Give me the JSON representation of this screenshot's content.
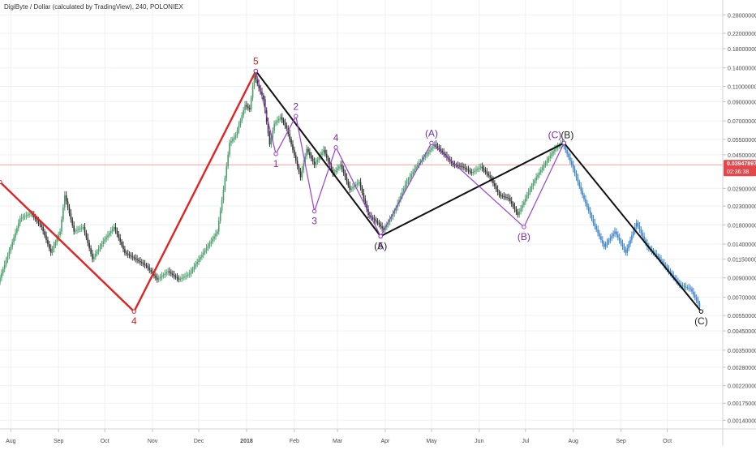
{
  "title": "DigiByte / Dollar (calculated by TradingView), 240, POLONIEX",
  "colors": {
    "grid": "#eef0f3",
    "axis_text": "#4a4a4a",
    "candle_up": "#4a9e6a",
    "candle_down": "#333333",
    "candle_recent": "#3d84c6",
    "red_wave": "#e32222",
    "black_wave": "#111111",
    "purple_wave": "#9b3fd0",
    "wave_label_red": "#d22020",
    "wave_label_purple": "#7a2fa8",
    "wave_label_black": "#222222",
    "current_price_bg": "#e3474a",
    "current_price_line": "#f0a3a3"
  },
  "chart_data": {
    "type": "line",
    "y_scale": "log",
    "ylim": [
      0.00125,
      0.34
    ],
    "x_ticks": [
      "Aug",
      "Sep",
      "Oct",
      "Nov",
      "Dec",
      "2018",
      "Feb",
      "Mar",
      "Apr",
      "May",
      "Jun",
      "Jul",
      "Aug",
      "Sep",
      "Oct"
    ],
    "y_ticks": [
      "0.28000000",
      "0.22000000",
      "0.18000000",
      "0.14000000",
      "0.11000000",
      "0.09000000",
      "0.07000000",
      "0.05500000",
      "0.04500000",
      "0.02900000",
      "0.02300000",
      "0.01800000",
      "0.01400000",
      "0.01150000",
      "0.00900000",
      "0.00700000",
      "0.00550000",
      "0.00450000",
      "0.00350000",
      "0.00280000",
      "0.00220000",
      "0.00175000",
      "0.00140000"
    ],
    "current_price": {
      "value": "0.03947897",
      "countdown": "02:36:38",
      "level": 0.03947897
    },
    "series": [
      {
        "kind": "price",
        "points": [
          {
            "x": "2017-07-25",
            "y": 0.0085
          },
          {
            "x": "2017-08-02",
            "y": 0.0135
          },
          {
            "x": "2017-08-08",
            "y": 0.0195
          },
          {
            "x": "2017-08-15",
            "y": 0.021
          },
          {
            "x": "2017-08-22",
            "y": 0.0175
          },
          {
            "x": "2017-08-28",
            "y": 0.0125
          },
          {
            "x": "2017-09-03",
            "y": 0.0165
          },
          {
            "x": "2017-09-06",
            "y": 0.0265
          },
          {
            "x": "2017-09-12",
            "y": 0.0165
          },
          {
            "x": "2017-09-18",
            "y": 0.0175
          },
          {
            "x": "2017-09-24",
            "y": 0.0115
          },
          {
            "x": "2017-10-01",
            "y": 0.0145
          },
          {
            "x": "2017-10-08",
            "y": 0.0175
          },
          {
            "x": "2017-10-15",
            "y": 0.0125
          },
          {
            "x": "2017-10-22",
            "y": 0.0115
          },
          {
            "x": "2017-10-29",
            "y": 0.0105
          },
          {
            "x": "2017-11-05",
            "y": 0.0088
          },
          {
            "x": "2017-11-12",
            "y": 0.0098
          },
          {
            "x": "2017-11-19",
            "y": 0.0088
          },
          {
            "x": "2017-11-26",
            "y": 0.0095
          },
          {
            "x": "2017-12-03",
            "y": 0.0118
          },
          {
            "x": "2017-12-10",
            "y": 0.0145
          },
          {
            "x": "2017-12-14",
            "y": 0.0165
          },
          {
            "x": "2017-12-18",
            "y": 0.0285
          },
          {
            "x": "2017-12-22",
            "y": 0.0525
          },
          {
            "x": "2017-12-26",
            "y": 0.058
          },
          {
            "x": "2017-12-29",
            "y": 0.0705
          },
          {
            "x": "2018-01-01",
            "y": 0.086
          },
          {
            "x": "2018-01-04",
            "y": 0.0815
          },
          {
            "x": "2018-01-07",
            "y": 0.1275
          },
          {
            "x": "2018-01-10",
            "y": 0.1075
          },
          {
            "x": "2018-01-13",
            "y": 0.093
          },
          {
            "x": "2018-01-17",
            "y": 0.0515
          },
          {
            "x": "2018-01-20",
            "y": 0.0675
          },
          {
            "x": "2018-01-24",
            "y": 0.0735
          },
          {
            "x": "2018-01-28",
            "y": 0.0635
          },
          {
            "x": "2018-02-01",
            "y": 0.048
          },
          {
            "x": "2018-02-06",
            "y": 0.0335
          },
          {
            "x": "2018-02-10",
            "y": 0.0485
          },
          {
            "x": "2018-02-15",
            "y": 0.0395
          },
          {
            "x": "2018-02-21",
            "y": 0.048
          },
          {
            "x": "2018-02-27",
            "y": 0.035
          },
          {
            "x": "2018-03-04",
            "y": 0.0395
          },
          {
            "x": "2018-03-10",
            "y": 0.0285
          },
          {
            "x": "2018-03-16",
            "y": 0.0315
          },
          {
            "x": "2018-03-22",
            "y": 0.0205
          },
          {
            "x": "2018-03-28",
            "y": 0.0185
          },
          {
            "x": "2018-04-01",
            "y": 0.0168
          },
          {
            "x": "2018-04-08",
            "y": 0.0215
          },
          {
            "x": "2018-04-15",
            "y": 0.0305
          },
          {
            "x": "2018-04-22",
            "y": 0.0385
          },
          {
            "x": "2018-04-28",
            "y": 0.0445
          },
          {
            "x": "2018-05-04",
            "y": 0.0515
          },
          {
            "x": "2018-05-10",
            "y": 0.0455
          },
          {
            "x": "2018-05-16",
            "y": 0.0395
          },
          {
            "x": "2018-05-22",
            "y": 0.0385
          },
          {
            "x": "2018-05-28",
            "y": 0.0355
          },
          {
            "x": "2018-06-03",
            "y": 0.0385
          },
          {
            "x": "2018-06-09",
            "y": 0.0335
          },
          {
            "x": "2018-06-15",
            "y": 0.0265
          },
          {
            "x": "2018-06-21",
            "y": 0.0255
          },
          {
            "x": "2018-06-27",
            "y": 0.0205
          },
          {
            "x": "2018-07-03",
            "y": 0.0265
          },
          {
            "x": "2018-07-09",
            "y": 0.0335
          },
          {
            "x": "2018-07-15",
            "y": 0.0405
          },
          {
            "x": "2018-07-21",
            "y": 0.0485
          },
          {
            "x": "2018-07-26",
            "y": 0.0525
          },
          {
            "x": "2018-08-01",
            "y": 0.0395
          },
          {
            "x": "2018-08-08",
            "y": 0.0265
          },
          {
            "x": "2018-08-15",
            "y": 0.0185
          },
          {
            "x": "2018-08-22",
            "y": 0.0135
          },
          {
            "x": "2018-08-29",
            "y": 0.0165
          },
          {
            "x": "2018-09-05",
            "y": 0.0125
          },
          {
            "x": "2018-09-12",
            "y": 0.0185
          },
          {
            "x": "2018-09-19",
            "y": 0.0135
          },
          {
            "x": "2018-09-26",
            "y": 0.0118
          },
          {
            "x": "2018-10-03",
            "y": 0.0098
          },
          {
            "x": "2018-10-10",
            "y": 0.0082
          },
          {
            "x": "2018-10-17",
            "y": 0.0078
          },
          {
            "x": "2018-10-23",
            "y": 0.0062
          }
        ]
      },
      {
        "kind": "wave",
        "style": "red",
        "points": [
          {
            "x": "2017-07-25",
            "y": 0.0315
          },
          {
            "x": "2017-10-20",
            "y": 0.0058
          },
          {
            "x": "2018-01-07",
            "y": 0.1345
          }
        ]
      },
      {
        "kind": "wave",
        "style": "black",
        "points": [
          {
            "x": "2018-01-07",
            "y": 0.1345
          },
          {
            "x": "2018-03-29",
            "y": 0.0155
          },
          {
            "x": "2018-07-26",
            "y": 0.0525
          },
          {
            "x": "2018-10-23",
            "y": 0.0058
          }
        ]
      },
      {
        "kind": "wave",
        "style": "purple",
        "points": [
          {
            "x": "2018-01-07",
            "y": 0.1345
          },
          {
            "x": "2018-01-20",
            "y": 0.0455
          },
          {
            "x": "2018-02-02",
            "y": 0.0745
          },
          {
            "x": "2018-02-14",
            "y": 0.0215
          },
          {
            "x": "2018-02-28",
            "y": 0.0495
          },
          {
            "x": "2018-03-29",
            "y": 0.0155
          }
        ]
      },
      {
        "kind": "wave",
        "style": "purple",
        "points": [
          {
            "x": "2018-03-29",
            "y": 0.0155
          },
          {
            "x": "2018-05-01",
            "y": 0.0525
          },
          {
            "x": "2018-06-30",
            "y": 0.0175
          },
          {
            "x": "2018-07-26",
            "y": 0.0525
          }
        ]
      }
    ],
    "annotations": [
      {
        "text": "5",
        "x": "2018-01-07",
        "y": 0.1345,
        "style": "red",
        "pos": "above"
      },
      {
        "text": "4",
        "x": "2017-10-20",
        "y": 0.0058,
        "style": "red",
        "pos": "below"
      },
      {
        "text": "1",
        "x": "2018-01-20",
        "y": 0.0455,
        "style": "purple",
        "pos": "below"
      },
      {
        "text": "2",
        "x": "2018-02-02",
        "y": 0.0745,
        "style": "purple",
        "pos": "above"
      },
      {
        "text": "3",
        "x": "2018-02-14",
        "y": 0.0215,
        "style": "purple",
        "pos": "below"
      },
      {
        "text": "4",
        "x": "2018-02-28",
        "y": 0.0495,
        "style": "purple",
        "pos": "above"
      },
      {
        "text": "5",
        "x": "2018-03-29",
        "y": 0.0155,
        "style": "purple",
        "pos": "below"
      },
      {
        "text": "(A)",
        "x": "2018-03-29",
        "y": 0.0155,
        "style": "black",
        "pos": "below"
      },
      {
        "text": "(A)",
        "x": "2018-05-01",
        "y": 0.0525,
        "style": "purple",
        "pos": "above"
      },
      {
        "text": "(B)",
        "x": "2018-06-30",
        "y": 0.0175,
        "style": "purple",
        "pos": "below"
      },
      {
        "text": "(C)",
        "x": "2018-07-26",
        "y": 0.0525,
        "style": "purple",
        "pos": "above_left"
      },
      {
        "text": "(B)",
        "x": "2018-07-26",
        "y": 0.0525,
        "style": "black",
        "pos": "above_right"
      },
      {
        "text": "(C)",
        "x": "2018-10-23",
        "y": 0.0058,
        "style": "black",
        "pos": "below"
      }
    ]
  }
}
